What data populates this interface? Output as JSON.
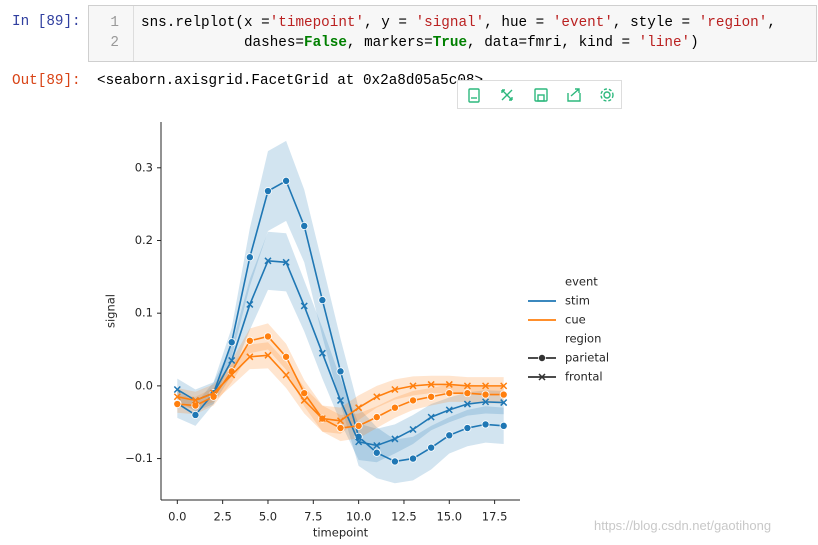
{
  "input_prompt": "In [89]:",
  "code": {
    "line_numbers": [
      "1",
      "2"
    ],
    "lines": [
      [
        {
          "text": "sns.relplot(x =",
          "style": "plain"
        },
        {
          "text": "'timepoint'",
          "style": "string"
        },
        {
          "text": ", y = ",
          "style": "plain"
        },
        {
          "text": "'signal'",
          "style": "string"
        },
        {
          "text": ", hue = ",
          "style": "plain"
        },
        {
          "text": "'event'",
          "style": "string"
        },
        {
          "text": ", style = ",
          "style": "plain"
        },
        {
          "text": "'region'",
          "style": "string"
        },
        {
          "text": ",",
          "style": "plain"
        }
      ],
      [
        {
          "text": "            dashes=",
          "style": "plain"
        },
        {
          "text": "False",
          "style": "keyword"
        },
        {
          "text": ", markers=",
          "style": "plain"
        },
        {
          "text": "True",
          "style": "keyword"
        },
        {
          "text": ", data=fmri, kind = ",
          "style": "plain"
        },
        {
          "text": "'line'",
          "style": "string"
        },
        {
          "text": ")",
          "style": "plain"
        }
      ]
    ]
  },
  "output_prompt": "Out[89]:",
  "output_text": "<seaborn.axisgrid.FacetGrid at 0x2a8d05a5c08>",
  "watermark": "https://blog.csdn.net/gaotihong",
  "chart_data": {
    "type": "line",
    "x_label": "timepoint",
    "y_label": "signal",
    "x": [
      0,
      1,
      2,
      3,
      4,
      5,
      6,
      7,
      8,
      9,
      10,
      11,
      12,
      13,
      14,
      15,
      16,
      17,
      18
    ],
    "xlim": [
      -0.9,
      18.9
    ],
    "ylim": [
      -0.157,
      0.363
    ],
    "xticks": [
      {
        "value": 0,
        "label": "0.0"
      },
      2.5,
      {
        "value": 5,
        "label": "5.0"
      },
      7.5,
      {
        "value": 10,
        "label": "10.0"
      },
      12.5,
      {
        "value": 15,
        "label": "15.0"
      },
      17.5
    ],
    "yticks": [
      {
        "value": -0.1,
        "label": "−0.1"
      },
      {
        "value": 0,
        "label": "0.0"
      },
      0.1,
      0.2,
      0.3
    ],
    "legend": {
      "hue_title": "event",
      "hue": [
        {
          "name": "stim",
          "color": "#1f77b4"
        },
        {
          "name": "cue",
          "color": "#ff7f0e"
        }
      ],
      "style_title": "region",
      "style": [
        {
          "name": "parietal",
          "marker": "circle"
        },
        {
          "name": "frontal",
          "marker": "x"
        }
      ]
    },
    "series": [
      {
        "event": "stim",
        "region": "parietal",
        "color": "#1f77b4",
        "marker": "circle",
        "values": [
          -0.024,
          -0.04,
          -0.01,
          0.06,
          0.177,
          0.268,
          0.282,
          0.22,
          0.118,
          0.02,
          -0.07,
          -0.092,
          -0.104,
          -0.1,
          -0.085,
          -0.068,
          -0.058,
          -0.053,
          -0.055
        ],
        "lower": [
          -0.044,
          -0.055,
          -0.025,
          0.04,
          0.137,
          0.213,
          0.227,
          0.17,
          0.068,
          -0.025,
          -0.11,
          -0.127,
          -0.134,
          -0.13,
          -0.115,
          -0.093,
          -0.083,
          -0.078,
          -0.08
        ],
        "upper": [
          -0.004,
          -0.025,
          0.005,
          0.08,
          0.217,
          0.323,
          0.337,
          0.27,
          0.168,
          0.065,
          -0.03,
          -0.057,
          -0.074,
          -0.07,
          -0.055,
          -0.043,
          -0.033,
          -0.028,
          -0.03
        ]
      },
      {
        "event": "stim",
        "region": "frontal",
        "color": "#1f77b4",
        "marker": "x",
        "values": [
          -0.005,
          -0.02,
          -0.01,
          0.035,
          0.112,
          0.172,
          0.17,
          0.11,
          0.045,
          -0.02,
          -0.077,
          -0.082,
          -0.073,
          -0.06,
          -0.043,
          -0.033,
          -0.025,
          -0.022,
          -0.023
        ],
        "lower": [
          -0.02,
          -0.035,
          -0.025,
          0.015,
          0.077,
          0.132,
          0.13,
          0.075,
          0.01,
          -0.05,
          -0.102,
          -0.105,
          -0.093,
          -0.08,
          -0.061,
          -0.05,
          -0.041,
          -0.038,
          -0.039
        ],
        "upper": [
          0.01,
          -0.005,
          0.005,
          0.055,
          0.147,
          0.212,
          0.21,
          0.145,
          0.08,
          0.01,
          -0.052,
          -0.059,
          -0.053,
          -0.04,
          -0.025,
          -0.016,
          -0.009,
          -0.006,
          -0.007
        ]
      },
      {
        "event": "cue",
        "region": "parietal",
        "color": "#ff7f0e",
        "marker": "circle",
        "values": [
          -0.025,
          -0.027,
          -0.015,
          0.02,
          0.062,
          0.068,
          0.04,
          -0.01,
          -0.045,
          -0.058,
          -0.055,
          -0.043,
          -0.03,
          -0.02,
          -0.015,
          -0.01,
          -0.01,
          -0.012,
          -0.012
        ],
        "lower": [
          -0.037,
          -0.039,
          -0.027,
          0.005,
          0.045,
          0.05,
          0.022,
          -0.028,
          -0.063,
          -0.076,
          -0.072,
          -0.058,
          -0.044,
          -0.033,
          -0.027,
          -0.022,
          -0.022,
          -0.024,
          -0.024
        ],
        "upper": [
          -0.013,
          -0.015,
          -0.003,
          0.035,
          0.079,
          0.086,
          0.058,
          0.008,
          -0.027,
          -0.04,
          -0.038,
          -0.028,
          -0.016,
          -0.007,
          -0.003,
          0.002,
          0.002,
          0.0,
          0.0
        ]
      },
      {
        "event": "cue",
        "region": "frontal",
        "color": "#ff7f0e",
        "marker": "x",
        "values": [
          -0.015,
          -0.02,
          -0.01,
          0.015,
          0.04,
          0.042,
          0.015,
          -0.02,
          -0.045,
          -0.048,
          -0.03,
          -0.015,
          -0.005,
          0.0,
          0.002,
          0.002,
          0.0,
          0.0,
          0.0
        ],
        "lower": [
          -0.027,
          -0.032,
          -0.022,
          0.0,
          0.023,
          0.024,
          -0.003,
          -0.038,
          -0.063,
          -0.066,
          -0.047,
          -0.03,
          -0.019,
          -0.013,
          -0.01,
          -0.01,
          -0.012,
          -0.012,
          -0.012
        ],
        "upper": [
          -0.003,
          -0.008,
          0.002,
          0.03,
          0.057,
          0.06,
          0.033,
          -0.002,
          -0.027,
          -0.03,
          -0.013,
          0.0,
          0.009,
          0.013,
          0.014,
          0.014,
          0.012,
          0.012,
          0.012
        ]
      }
    ]
  }
}
